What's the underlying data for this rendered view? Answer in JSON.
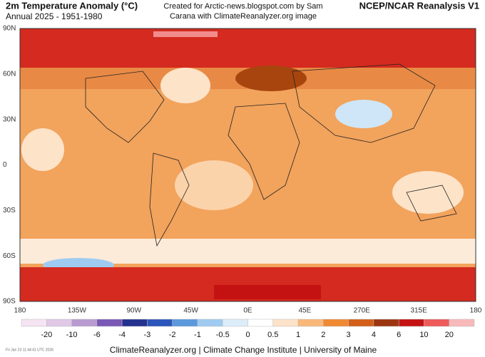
{
  "header": {
    "title": "2m Temperature Anomaly (°C)",
    "subtitle": "Annual 2025 - 1951-1980",
    "credit": [
      "Created for Arctic-news.blogspot.com by Sam",
      "Carana with ClimateReanalyzer.org image"
    ],
    "dataset": "NCEP/NCAR Reanalysis V1"
  },
  "map": {
    "lat_labels": [
      "90N",
      "60N",
      "30N",
      "0",
      "30S",
      "60S",
      "90S"
    ],
    "lon_labels": [
      "180",
      "135W",
      "90W",
      "45W",
      "0E",
      "45E",
      "270E",
      "315E",
      "180"
    ]
  },
  "colorbar": {
    "labels": [
      -20,
      -10,
      -6,
      -4,
      -3,
      -2,
      -1,
      -0.5,
      0,
      0.5,
      1,
      2,
      3,
      4,
      6,
      10,
      20
    ],
    "colors": [
      "#f5e4f1",
      "#e0c8e6",
      "#b99bd2",
      "#7a58b6",
      "#24318f",
      "#2b55ba",
      "#5b98dc",
      "#9fcbf1",
      "#dcedf9",
      "#ffffff",
      "#fde3c8",
      "#f9b87a",
      "#ef8a33",
      "#d35f18",
      "#9c3510",
      "#c41212",
      "#ef5a5a",
      "#f7b9b9"
    ]
  },
  "footer": {
    "source": "ClimateReanalyzer.org | Climate Change Institute | University of Maine",
    "timestamp": "Fri Jan 23 11:44:41 UTC 2026"
  }
}
